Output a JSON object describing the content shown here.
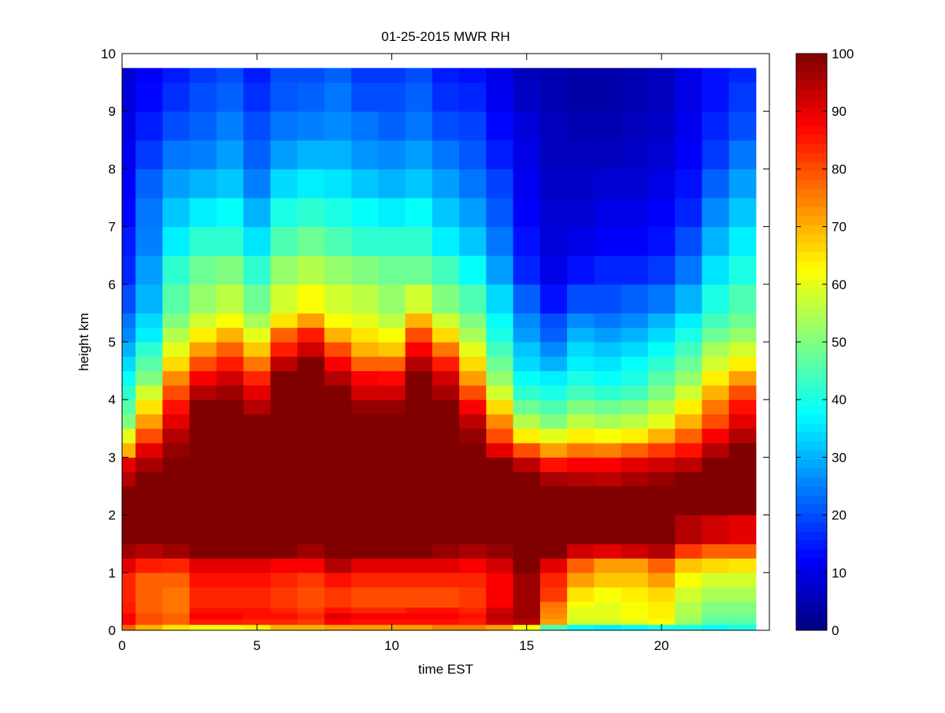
{
  "chart_data": {
    "type": "heatmap",
    "title": "01-25-2015 MWR RH",
    "xlabel": "time EST",
    "ylabel": "height km",
    "xlim": [
      0,
      24
    ],
    "ylim": [
      0,
      10
    ],
    "xticks": [
      0,
      5,
      10,
      15,
      20
    ],
    "yticks": [
      0,
      1,
      2,
      3,
      4,
      5,
      6,
      7,
      8,
      9,
      10
    ],
    "colormap": "jet",
    "clim": [
      0,
      100
    ],
    "colorbar_ticks": [
      0,
      10,
      20,
      30,
      40,
      50,
      60,
      70,
      80,
      90,
      100
    ],
    "colorbar_position": "right",
    "grid": false,
    "time_hours": [
      0,
      1,
      2,
      3,
      4,
      5,
      6,
      7,
      8,
      9,
      10,
      11,
      12,
      13,
      14,
      15,
      16,
      17,
      18,
      19,
      20,
      21,
      22,
      23
    ],
    "height_edges_km": [
      0,
      0.1,
      0.2,
      0.3,
      0.4,
      0.5,
      0.75,
      1.0,
      1.25,
      1.5,
      2.0,
      2.5,
      2.75,
      3.0,
      3.25,
      3.5,
      3.75,
      4.0,
      4.25,
      4.5,
      4.75,
      5.0,
      5.25,
      5.5,
      6.0,
      6.5,
      7.0,
      7.5,
      8.0,
      8.5,
      9.0,
      9.5,
      9.75
    ],
    "rh_percent_by_time": [
      [
        78,
        88,
        88,
        85,
        85,
        84,
        84,
        90,
        97,
        100,
        100,
        95,
        90,
        70,
        60,
        50,
        46,
        42,
        38,
        34,
        30,
        26,
        24,
        20,
        16,
        15,
        13,
        12,
        11,
        10,
        9,
        8
      ],
      [
        70,
        80,
        80,
        78,
        78,
        78,
        78,
        85,
        95,
        100,
        100,
        100,
        96,
        90,
        80,
        72,
        65,
        58,
        50,
        46,
        42,
        36,
        34,
        30,
        28,
        25,
        24,
        22,
        18,
        15,
        13,
        12
      ],
      [
        65,
        78,
        78,
        76,
        76,
        76,
        78,
        84,
        97,
        100,
        100,
        100,
        100,
        98,
        95,
        90,
        86,
        80,
        74,
        66,
        60,
        55,
        50,
        46,
        42,
        36,
        32,
        28,
        24,
        20,
        17,
        15
      ],
      [
        62,
        85,
        88,
        86,
        84,
        84,
        86,
        90,
        100,
        100,
        100,
        100,
        100,
        100,
        100,
        100,
        100,
        95,
        88,
        80,
        72,
        64,
        58,
        52,
        48,
        42,
        36,
        30,
        25,
        22,
        20,
        18
      ],
      [
        62,
        85,
        88,
        86,
        84,
        84,
        86,
        90,
        100,
        100,
        100,
        100,
        100,
        100,
        100,
        100,
        100,
        97,
        92,
        85,
        78,
        70,
        62,
        56,
        50,
        42,
        38,
        32,
        28,
        25,
        22,
        20
      ],
      [
        64,
        84,
        86,
        86,
        84,
        84,
        86,
        90,
        100,
        100,
        100,
        100,
        100,
        100,
        100,
        100,
        95,
        90,
        84,
        76,
        68,
        60,
        54,
        48,
        42,
        35,
        30,
        25,
        22,
        20,
        17,
        15
      ],
      [
        70,
        84,
        86,
        84,
        82,
        82,
        84,
        88,
        100,
        100,
        100,
        100,
        100,
        100,
        100,
        100,
        100,
        100,
        100,
        94,
        85,
        78,
        65,
        58,
        52,
        45,
        40,
        34,
        28,
        24,
        21,
        20
      ],
      [
        70,
        82,
        84,
        82,
        80,
        80,
        82,
        88,
        97,
        100,
        100,
        100,
        100,
        100,
        100,
        100,
        100,
        100,
        100,
        100,
        92,
        85,
        72,
        62,
        55,
        48,
        42,
        36,
        30,
        25,
        22,
        20
      ],
      [
        72,
        88,
        90,
        86,
        82,
        82,
        86,
        95,
        100,
        100,
        100,
        100,
        100,
        100,
        100,
        100,
        100,
        100,
        95,
        88,
        80,
        70,
        62,
        58,
        52,
        45,
        40,
        35,
        30,
        26,
        24,
        22
      ],
      [
        72,
        86,
        88,
        84,
        80,
        80,
        84,
        90,
        100,
        100,
        100,
        100,
        100,
        100,
        100,
        100,
        98,
        92,
        88,
        78,
        70,
        65,
        60,
        56,
        50,
        42,
        38,
        32,
        27,
        24,
        20,
        18
      ],
      [
        72,
        86,
        88,
        84,
        80,
        80,
        84,
        90,
        100,
        100,
        100,
        100,
        100,
        100,
        100,
        100,
        98,
        92,
        87,
        78,
        68,
        62,
        56,
        52,
        48,
        42,
        36,
        30,
        26,
        22,
        20,
        18
      ],
      [
        72,
        86,
        88,
        86,
        80,
        80,
        84,
        90,
        100,
        100,
        100,
        100,
        100,
        100,
        100,
        100,
        100,
        100,
        100,
        95,
        88,
        80,
        70,
        58,
        48,
        42,
        38,
        32,
        28,
        24,
        22,
        20
      ],
      [
        75,
        86,
        88,
        86,
        80,
        80,
        84,
        90,
        98,
        100,
        100,
        100,
        100,
        100,
        100,
        100,
        100,
        96,
        92,
        85,
        76,
        66,
        58,
        50,
        44,
        36,
        32,
        28,
        24,
        20,
        17,
        15
      ],
      [
        75,
        85,
        86,
        84,
        82,
        82,
        84,
        88,
        96,
        100,
        100,
        100,
        100,
        100,
        98,
        94,
        88,
        80,
        72,
        66,
        60,
        54,
        50,
        45,
        38,
        32,
        28,
        24,
        21,
        19,
        16,
        14
      ],
      [
        72,
        92,
        94,
        92,
        88,
        88,
        88,
        92,
        98,
        100,
        100,
        100,
        100,
        90,
        80,
        74,
        66,
        58,
        52,
        48,
        44,
        40,
        38,
        34,
        28,
        24,
        21,
        19,
        15,
        13,
        11,
        10
      ],
      [
        62,
        95,
        97,
        97,
        97,
        97,
        97,
        100,
        100,
        100,
        100,
        100,
        94,
        80,
        64,
        55,
        48,
        42,
        38,
        34,
        32,
        28,
        26,
        22,
        16,
        14,
        12,
        11,
        10,
        9,
        7,
        6
      ],
      [
        45,
        72,
        74,
        75,
        76,
        82,
        84,
        90,
        100,
        100,
        100,
        96,
        86,
        72,
        60,
        50,
        45,
        40,
        36,
        30,
        26,
        22,
        20,
        14,
        10,
        9,
        8,
        7,
        6,
        6,
        5,
        5
      ],
      [
        38,
        58,
        60,
        60,
        62,
        65,
        72,
        78,
        92,
        100,
        100,
        95,
        88,
        76,
        64,
        56,
        50,
        44,
        40,
        36,
        34,
        30,
        26,
        20,
        14,
        10,
        8,
        7,
        6,
        5,
        4,
        4
      ],
      [
        36,
        58,
        60,
        60,
        60,
        62,
        68,
        72,
        90,
        100,
        100,
        94,
        88,
        75,
        62,
        54,
        48,
        42,
        38,
        35,
        32,
        28,
        24,
        20,
        16,
        12,
        10,
        8,
        6,
        5,
        4,
        4
      ],
      [
        38,
        60,
        62,
        62,
        62,
        64,
        68,
        72,
        92,
        100,
        100,
        96,
        90,
        78,
        64,
        56,
        50,
        44,
        40,
        38,
        34,
        30,
        26,
        22,
        16,
        12,
        10,
        8,
        7,
        6,
        5,
        5
      ],
      [
        40,
        62,
        64,
        64,
        64,
        66,
        72,
        78,
        95,
        100,
        100,
        98,
        92,
        82,
        70,
        60,
        55,
        50,
        46,
        42,
        38,
        34,
        30,
        24,
        18,
        14,
        12,
        10,
        8,
        7,
        6,
        6
      ],
      [
        40,
        52,
        54,
        55,
        55,
        58,
        62,
        68,
        82,
        95,
        100,
        100,
        94,
        86,
        78,
        70,
        64,
        58,
        52,
        48,
        44,
        40,
        36,
        30,
        24,
        20,
        16,
        14,
        12,
        11,
        10,
        10
      ],
      [
        38,
        46,
        48,
        50,
        50,
        54,
        58,
        66,
        78,
        92,
        100,
        100,
        100,
        95,
        88,
        80,
        76,
        70,
        64,
        58,
        54,
        48,
        44,
        40,
        35,
        30,
        26,
        22,
        18,
        16,
        14,
        14
      ],
      [
        40,
        46,
        48,
        50,
        50,
        54,
        58,
        65,
        78,
        90,
        100,
        100,
        100,
        100,
        95,
        90,
        86,
        80,
        72,
        64,
        58,
        52,
        48,
        45,
        40,
        36,
        32,
        28,
        24,
        20,
        18,
        16
      ]
    ]
  }
}
